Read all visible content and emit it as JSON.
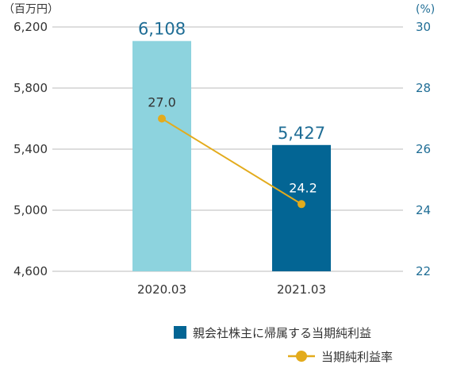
{
  "chart_data": {
    "type": "bar",
    "categories": [
      "2020.03",
      "2021.03"
    ],
    "series": [
      {
        "name": "親会社株主に帰属する当期純利益",
        "kind": "bar",
        "axis": "left",
        "values": [
          6108,
          5427
        ],
        "value_labels": [
          "6,108",
          "5,427"
        ],
        "colors": [
          "#8dd3de",
          "#036594"
        ]
      },
      {
        "name": "当期純利益率",
        "kind": "line",
        "axis": "right",
        "values": [
          27.0,
          24.2
        ],
        "value_labels": [
          "27.0",
          "24.2"
        ],
        "color": "#e3ab1c"
      }
    ],
    "y_left": {
      "unit": "（百万円）",
      "min": 4600,
      "max": 6200,
      "ticks": [
        4600,
        5000,
        5400,
        5800,
        6200
      ],
      "tick_labels": [
        "4,600",
        "5,000",
        "5,400",
        "5,800",
        "6,200"
      ]
    },
    "y_right": {
      "unit": "(%)",
      "min": 22,
      "max": 30,
      "ticks": [
        22,
        24,
        26,
        28,
        30
      ],
      "tick_labels": [
        "22",
        "24",
        "26",
        "28",
        "30"
      ]
    },
    "grid": true,
    "legend_placement": "bottom-right",
    "colors": {
      "axis_text_left": "#333333",
      "axis_text_right": "#1f6d95",
      "bar_label": "#1f6d95",
      "grid": "#bbbbbb",
      "line_label_dark": "#333333",
      "line_label_light": "#ffffff"
    }
  }
}
